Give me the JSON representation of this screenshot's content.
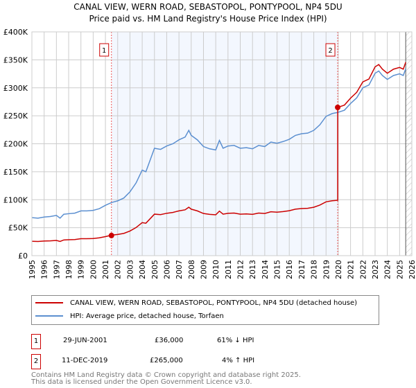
{
  "chart_data": {
    "type": "line",
    "title": "CANAL VIEW, WERN ROAD, SEBASTOPOL, PONTYPOOL, NP4 5DU",
    "subtitle": "Price paid vs. HM Land Registry's House Price Index (HPI)",
    "xlim": [
      1995,
      2026
    ],
    "ylim": [
      0,
      400000
    ],
    "x_ticks": [
      "1995",
      "1996",
      "1997",
      "1998",
      "1999",
      "2000",
      "2001",
      "2002",
      "2003",
      "2004",
      "2005",
      "2006",
      "2007",
      "2008",
      "2009",
      "2010",
      "2011",
      "2012",
      "2013",
      "2014",
      "2015",
      "2016",
      "2017",
      "2018",
      "2019",
      "2020",
      "2021",
      "2022",
      "2023",
      "2024",
      "2025",
      "2026"
    ],
    "y_ticks": [
      {
        "v": 0,
        "l": "£0"
      },
      {
        "v": 50000,
        "l": "£50K"
      },
      {
        "v": 100000,
        "l": "£100K"
      },
      {
        "v": 150000,
        "l": "£150K"
      },
      {
        "v": 200000,
        "l": "£200K"
      },
      {
        "v": 250000,
        "l": "£250K"
      },
      {
        "v": 300000,
        "l": "£300K"
      },
      {
        "v": 350000,
        "l": "£350K"
      },
      {
        "v": 400000,
        "l": "£400K"
      }
    ],
    "grid": true,
    "hpi": [
      [
        1995,
        68
      ],
      [
        1995.5,
        67
      ],
      [
        1996,
        69
      ],
      [
        1996.5,
        70
      ],
      [
        1997,
        72
      ],
      [
        1997.3,
        67
      ],
      [
        1997.6,
        74
      ],
      [
        1998,
        75
      ],
      [
        1998.5,
        76
      ],
      [
        1999,
        80
      ],
      [
        1999.5,
        80
      ],
      [
        2000,
        81
      ],
      [
        2000.5,
        84
      ],
      [
        2001,
        90
      ],
      [
        2001.5,
        95
      ],
      [
        2002,
        98
      ],
      [
        2002.5,
        103
      ],
      [
        2003,
        114
      ],
      [
        2003.5,
        130
      ],
      [
        2004,
        153
      ],
      [
        2004.3,
        150
      ],
      [
        2004.6,
        168
      ],
      [
        2005,
        192
      ],
      [
        2005.5,
        190
      ],
      [
        2006,
        196
      ],
      [
        2006.5,
        200
      ],
      [
        2007,
        207
      ],
      [
        2007.5,
        212
      ],
      [
        2007.8,
        224
      ],
      [
        2008,
        215
      ],
      [
        2008.5,
        207
      ],
      [
        2009,
        195
      ],
      [
        2009.5,
        191
      ],
      [
        2010,
        189
      ],
      [
        2010.3,
        206
      ],
      [
        2010.6,
        192
      ],
      [
        2011,
        196
      ],
      [
        2011.5,
        197
      ],
      [
        2012,
        192
      ],
      [
        2012.5,
        193
      ],
      [
        2013,
        191
      ],
      [
        2013.5,
        197
      ],
      [
        2014,
        195
      ],
      [
        2014.5,
        203
      ],
      [
        2015,
        201
      ],
      [
        2015.5,
        204
      ],
      [
        2016,
        208
      ],
      [
        2016.5,
        215
      ],
      [
        2017,
        218
      ],
      [
        2017.5,
        219
      ],
      [
        2018,
        224
      ],
      [
        2018.5,
        234
      ],
      [
        2019,
        249
      ],
      [
        2019.5,
        254
      ],
      [
        2019.95,
        256
      ],
      [
        2020.5,
        260
      ],
      [
        2021,
        272
      ],
      [
        2021.5,
        282
      ],
      [
        2022,
        300
      ],
      [
        2022.5,
        305
      ],
      [
        2023,
        326
      ],
      [
        2023.3,
        330
      ],
      [
        2023.6,
        322
      ],
      [
        2024,
        315
      ],
      [
        2024.5,
        322
      ],
      [
        2025,
        325
      ],
      [
        2025.3,
        322
      ],
      [
        2025.5,
        334
      ]
    ],
    "sales": [
      {
        "n": "1",
        "x": 2001.49,
        "y": 36000
      },
      {
        "n": "2",
        "x": 2019.95,
        "y": 265000
      }
    ],
    "series_names": [
      "CANAL VIEW, WERN ROAD, SEBASTOPOL, PONTYPOOL, NP4 5DU (detached house)",
      "HPI: Average price, detached house, Torfaen"
    ],
    "colors": {
      "price": "#cc0000",
      "hpi": "#5b8fd0"
    }
  },
  "table": [
    {
      "n": "1",
      "date": "29-JUN-2001",
      "price": "£36,000",
      "hpi": "61% ↓ HPI"
    },
    {
      "n": "2",
      "date": "11-DEC-2019",
      "price": "£265,000",
      "hpi": "4% ↑ HPI"
    }
  ],
  "footer": [
    "Contains HM Land Registry data © Crown copyright and database right 2025.",
    "This data is licensed under the Open Government Licence v3.0."
  ]
}
